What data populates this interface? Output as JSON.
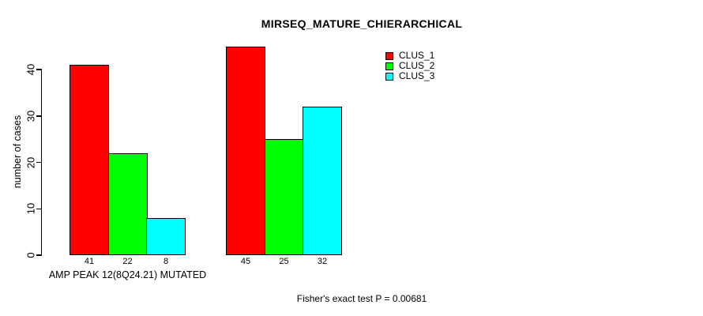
{
  "chart_data": {
    "type": "bar",
    "title": "MIRSEQ_MATURE_CHIERARCHICAL",
    "xlabel": "",
    "ylabel": "number of cases",
    "ylim": [
      0,
      45
    ],
    "yticks": [
      0,
      10,
      20,
      30,
      40
    ],
    "grid": false,
    "legend_position": "top-right",
    "categories": [
      "AMP PEAK 12(8Q24.21) MUTATED",
      ""
    ],
    "series": [
      {
        "name": "CLUS_1",
        "color": "#ff0000",
        "values": [
          41,
          45
        ]
      },
      {
        "name": "CLUS_2",
        "color": "#00ff00",
        "values": [
          22,
          25
        ]
      },
      {
        "name": "CLUS_3",
        "color": "#00ffff",
        "values": [
          8,
          32
        ]
      }
    ],
    "bar_value_labels": [
      [
        41,
        22,
        8
      ],
      [
        45,
        25,
        32
      ]
    ],
    "annotation": "Fisher's exact test P = 0.00681"
  },
  "legend": {
    "items": [
      {
        "label": "CLUS_1",
        "color": "#ff0000"
      },
      {
        "label": "CLUS_2",
        "color": "#00ff00"
      },
      {
        "label": "CLUS_3",
        "color": "#00ffff"
      }
    ]
  }
}
